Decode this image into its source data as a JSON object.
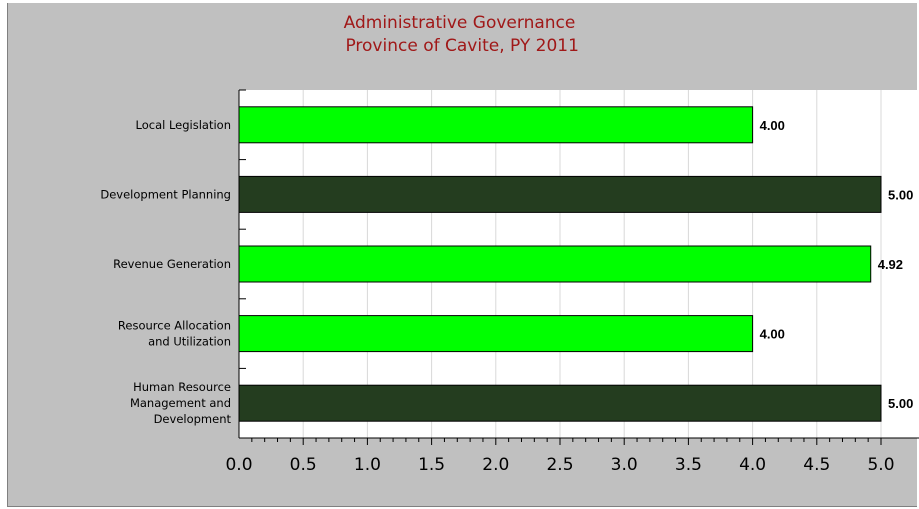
{
  "chart_data": {
    "type": "bar",
    "orientation": "horizontal",
    "title": [
      "Administrative Governance",
      " Province of Cavite, PY 2011"
    ],
    "categories": [
      "Local Legislation",
      "Development Planning",
      "Revenue Generation",
      "Resource Allocation\nand Utilization",
      "Human Resource\nManagement and\nDevelopment"
    ],
    "values": [
      4.0,
      5.0,
      4.92,
      4.0,
      5.0
    ],
    "value_labels": [
      "4.00",
      "5.00",
      "4.92",
      "4.00",
      "5.00"
    ],
    "bar_colors": [
      "#00ff00",
      "#243d1f",
      "#00ff00",
      "#00ff00",
      "#243d1f"
    ],
    "xlim": [
      0,
      5.0
    ],
    "x_ticks": [
      "0.0",
      "0.5",
      "1.0",
      "1.5",
      "2.0",
      "2.5",
      "3.0",
      "3.5",
      "4.0",
      "4.5",
      "5.0"
    ],
    "xlabel": "",
    "ylabel": "",
    "grid": "vertical",
    "legend": "none"
  },
  "colors": {
    "background": "#c0c0c0",
    "plot_area": "#ffffff",
    "title": "#a01818",
    "gridline": "#d8d8d8"
  }
}
